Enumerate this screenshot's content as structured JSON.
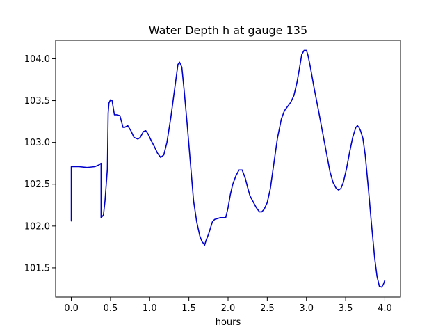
{
  "chart_data": {
    "type": "line",
    "title": "Water Depth h at gauge 135",
    "xlabel": "hours",
    "ylabel": "",
    "xlim": [
      -0.2,
      4.2
    ],
    "ylim": [
      101.15,
      104.22
    ],
    "xticks": [
      0.0,
      0.5,
      1.0,
      1.5,
      2.0,
      2.5,
      3.0,
      3.5,
      4.0
    ],
    "xtick_labels": [
      "0.0",
      "0.5",
      "1.0",
      "1.5",
      "2.0",
      "2.5",
      "3.0",
      "3.5",
      "4.0"
    ],
    "yticks": [
      101.5,
      102.0,
      102.5,
      103.0,
      103.5,
      104.0
    ],
    "ytick_labels": [
      "101.5",
      "102.0",
      "102.5",
      "103.0",
      "103.5",
      "104.0"
    ],
    "grid": false,
    "series": [
      {
        "name": "",
        "color": "#0000cc",
        "x": [
          0.0,
          0.0,
          0.05,
          0.1,
          0.2,
          0.3,
          0.35,
          0.38,
          0.38,
          0.41,
          0.43,
          0.46,
          0.47,
          0.48,
          0.5,
          0.52,
          0.55,
          0.58,
          0.62,
          0.66,
          0.68,
          0.72,
          0.76,
          0.8,
          0.85,
          0.88,
          0.92,
          0.95,
          0.98,
          1.02,
          1.06,
          1.1,
          1.14,
          1.18,
          1.22,
          1.27,
          1.32,
          1.36,
          1.38,
          1.41,
          1.44,
          1.48,
          1.52,
          1.56,
          1.6,
          1.64,
          1.67,
          1.69,
          1.7,
          1.72,
          1.75,
          1.78,
          1.8,
          1.83,
          1.87,
          1.9,
          1.93,
          1.95,
          1.97,
          2.0,
          2.03,
          2.06,
          2.1,
          2.14,
          2.18,
          2.22,
          2.25,
          2.28,
          2.32,
          2.36,
          2.4,
          2.43,
          2.46,
          2.5,
          2.54,
          2.58,
          2.63,
          2.68,
          2.72,
          2.76,
          2.8,
          2.84,
          2.88,
          2.91,
          2.94,
          2.97,
          3.0,
          3.02,
          3.05,
          3.1,
          3.15,
          3.2,
          3.25,
          3.3,
          3.34,
          3.38,
          3.41,
          3.44,
          3.47,
          3.51,
          3.55,
          3.59,
          3.63,
          3.65,
          3.67,
          3.69,
          3.72,
          3.75,
          3.79,
          3.83,
          3.87,
          3.9,
          3.93,
          3.96,
          3.98,
          4.0
        ],
        "y": [
          102.06,
          102.71,
          102.71,
          102.71,
          102.7,
          102.71,
          102.73,
          102.75,
          102.1,
          102.13,
          102.3,
          102.68,
          103.35,
          103.47,
          103.51,
          103.5,
          103.33,
          103.33,
          103.32,
          103.18,
          103.18,
          103.2,
          103.14,
          103.06,
          103.04,
          103.06,
          103.13,
          103.14,
          103.1,
          103.02,
          102.95,
          102.87,
          102.82,
          102.85,
          103.0,
          103.3,
          103.65,
          103.93,
          103.96,
          103.9,
          103.62,
          103.2,
          102.75,
          102.3,
          102.05,
          101.88,
          101.81,
          101.79,
          101.77,
          101.83,
          101.9,
          101.99,
          102.05,
          102.08,
          102.09,
          102.1,
          102.1,
          102.1,
          102.1,
          102.22,
          102.38,
          102.5,
          102.6,
          102.67,
          102.67,
          102.57,
          102.46,
          102.36,
          102.29,
          102.22,
          102.17,
          102.17,
          102.2,
          102.28,
          102.45,
          102.72,
          103.05,
          103.28,
          103.38,
          103.43,
          103.48,
          103.56,
          103.72,
          103.88,
          104.05,
          104.1,
          104.1,
          104.04,
          103.9,
          103.64,
          103.4,
          103.15,
          102.9,
          102.65,
          102.52,
          102.45,
          102.43,
          102.45,
          102.52,
          102.68,
          102.88,
          103.06,
          103.18,
          103.2,
          103.18,
          103.14,
          103.05,
          102.85,
          102.45,
          102.02,
          101.62,
          101.4,
          101.28,
          101.27,
          101.3,
          101.35
        ]
      }
    ]
  }
}
